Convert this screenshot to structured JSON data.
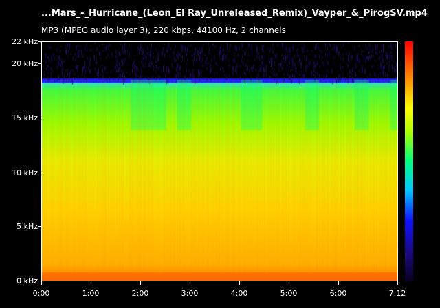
{
  "header": {
    "title": "...Mars_-_Hurricane_(Leon_El Ray_Unreleased_Remix)_Vayper_&_PirogSV.mp4",
    "info": "MP3 (MPEG audio layer 3), 220 kbps, 44100 Hz, 2 channels"
  },
  "y_axis": {
    "labels": [
      "22 kHz",
      "20 kHz",
      "15 kHz",
      "10 kHz",
      "5 kHz",
      "0 kHz"
    ],
    "values_khz": [
      22,
      20,
      15,
      10,
      5,
      0
    ]
  },
  "x_axis": {
    "labels": [
      "0:00",
      "1:00",
      "2:00",
      "3:00",
      "4:00",
      "5:00",
      "6:00",
      "7:12"
    ],
    "values_sec": [
      0,
      60,
      120,
      180,
      240,
      300,
      360,
      432
    ]
  },
  "spectrogram": {
    "duration_sec": 432,
    "max_khz": 22,
    "cutoff_khz": 18.5,
    "colorbar": [
      "#ff0000",
      "#ff8800",
      "#ffff00",
      "#aaff00",
      "#00ff80",
      "#00c8ff",
      "#1010ff",
      "#1a0a80",
      "#0a0020"
    ]
  }
}
